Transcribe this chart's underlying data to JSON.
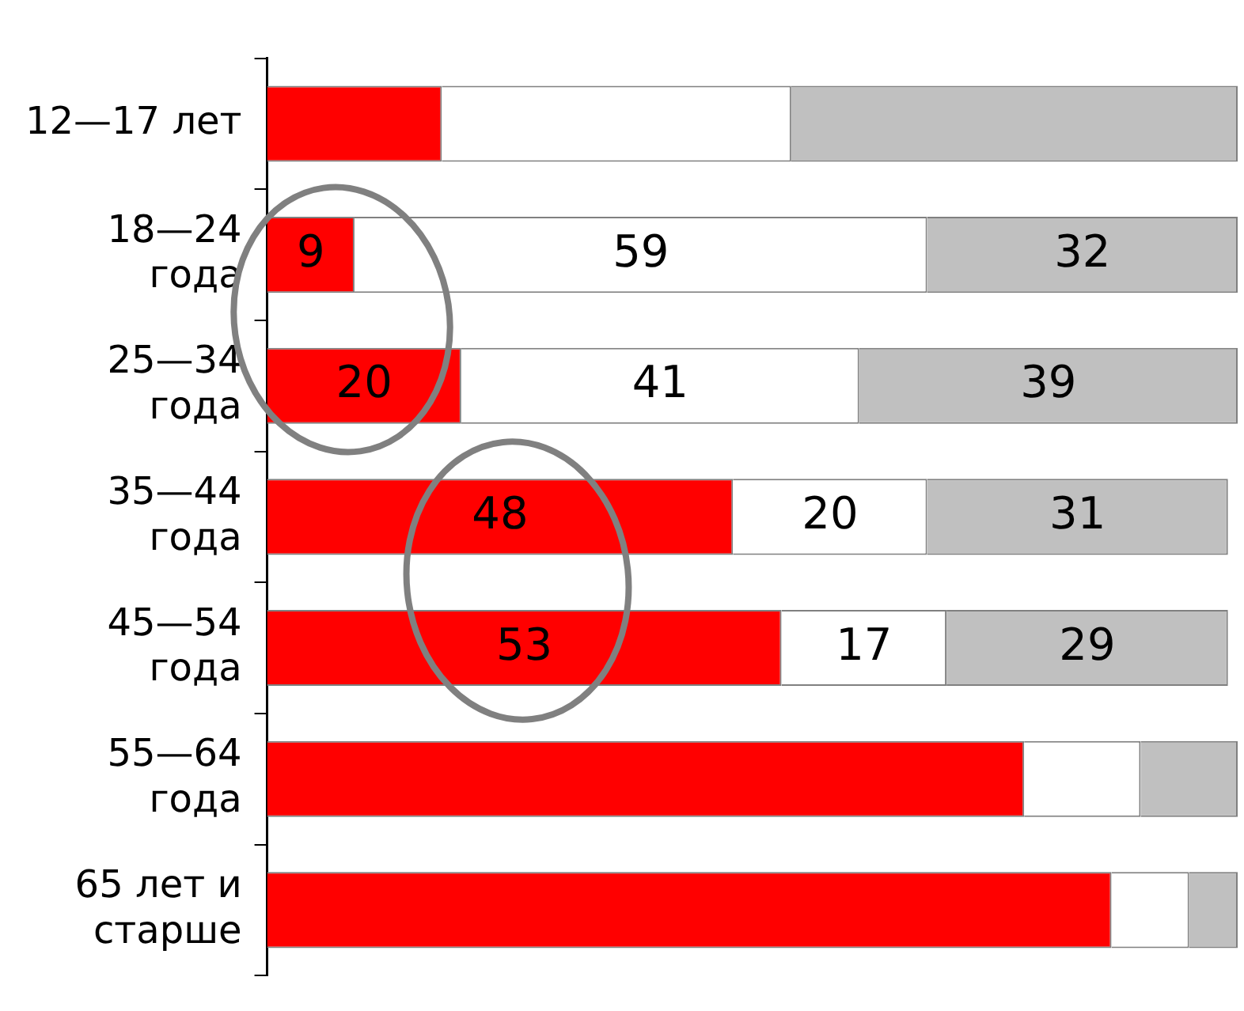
{
  "chart_data": {
    "type": "bar",
    "orientation": "horizontal",
    "stacked": true,
    "categories": [
      "12—17 лет",
      "18—24 года",
      "25—34 года",
      "35—44 года",
      "45—54 года",
      "55—64 года",
      "65 лет и старше"
    ],
    "series": [
      {
        "color": "#ff0000",
        "values": [
          18,
          9,
          20,
          48,
          53,
          78,
          87
        ],
        "value_labels": [
          null,
          "9",
          "20",
          "48",
          "53",
          null,
          null
        ]
      },
      {
        "color": "#ffffff",
        "values": [
          36,
          59,
          41,
          20,
          17,
          12,
          8
        ],
        "value_labels": [
          null,
          "59",
          "41",
          "20",
          "17",
          null,
          null
        ]
      },
      {
        "color": "#c0c0c0",
        "values": [
          46,
          32,
          39,
          31,
          29,
          10,
          5
        ],
        "value_labels": [
          null,
          "32",
          "39",
          "31",
          "29",
          null,
          null
        ]
      }
    ],
    "xlim": [
      0,
      100
    ],
    "grid": false,
    "tick_labels": "y"
  }
}
